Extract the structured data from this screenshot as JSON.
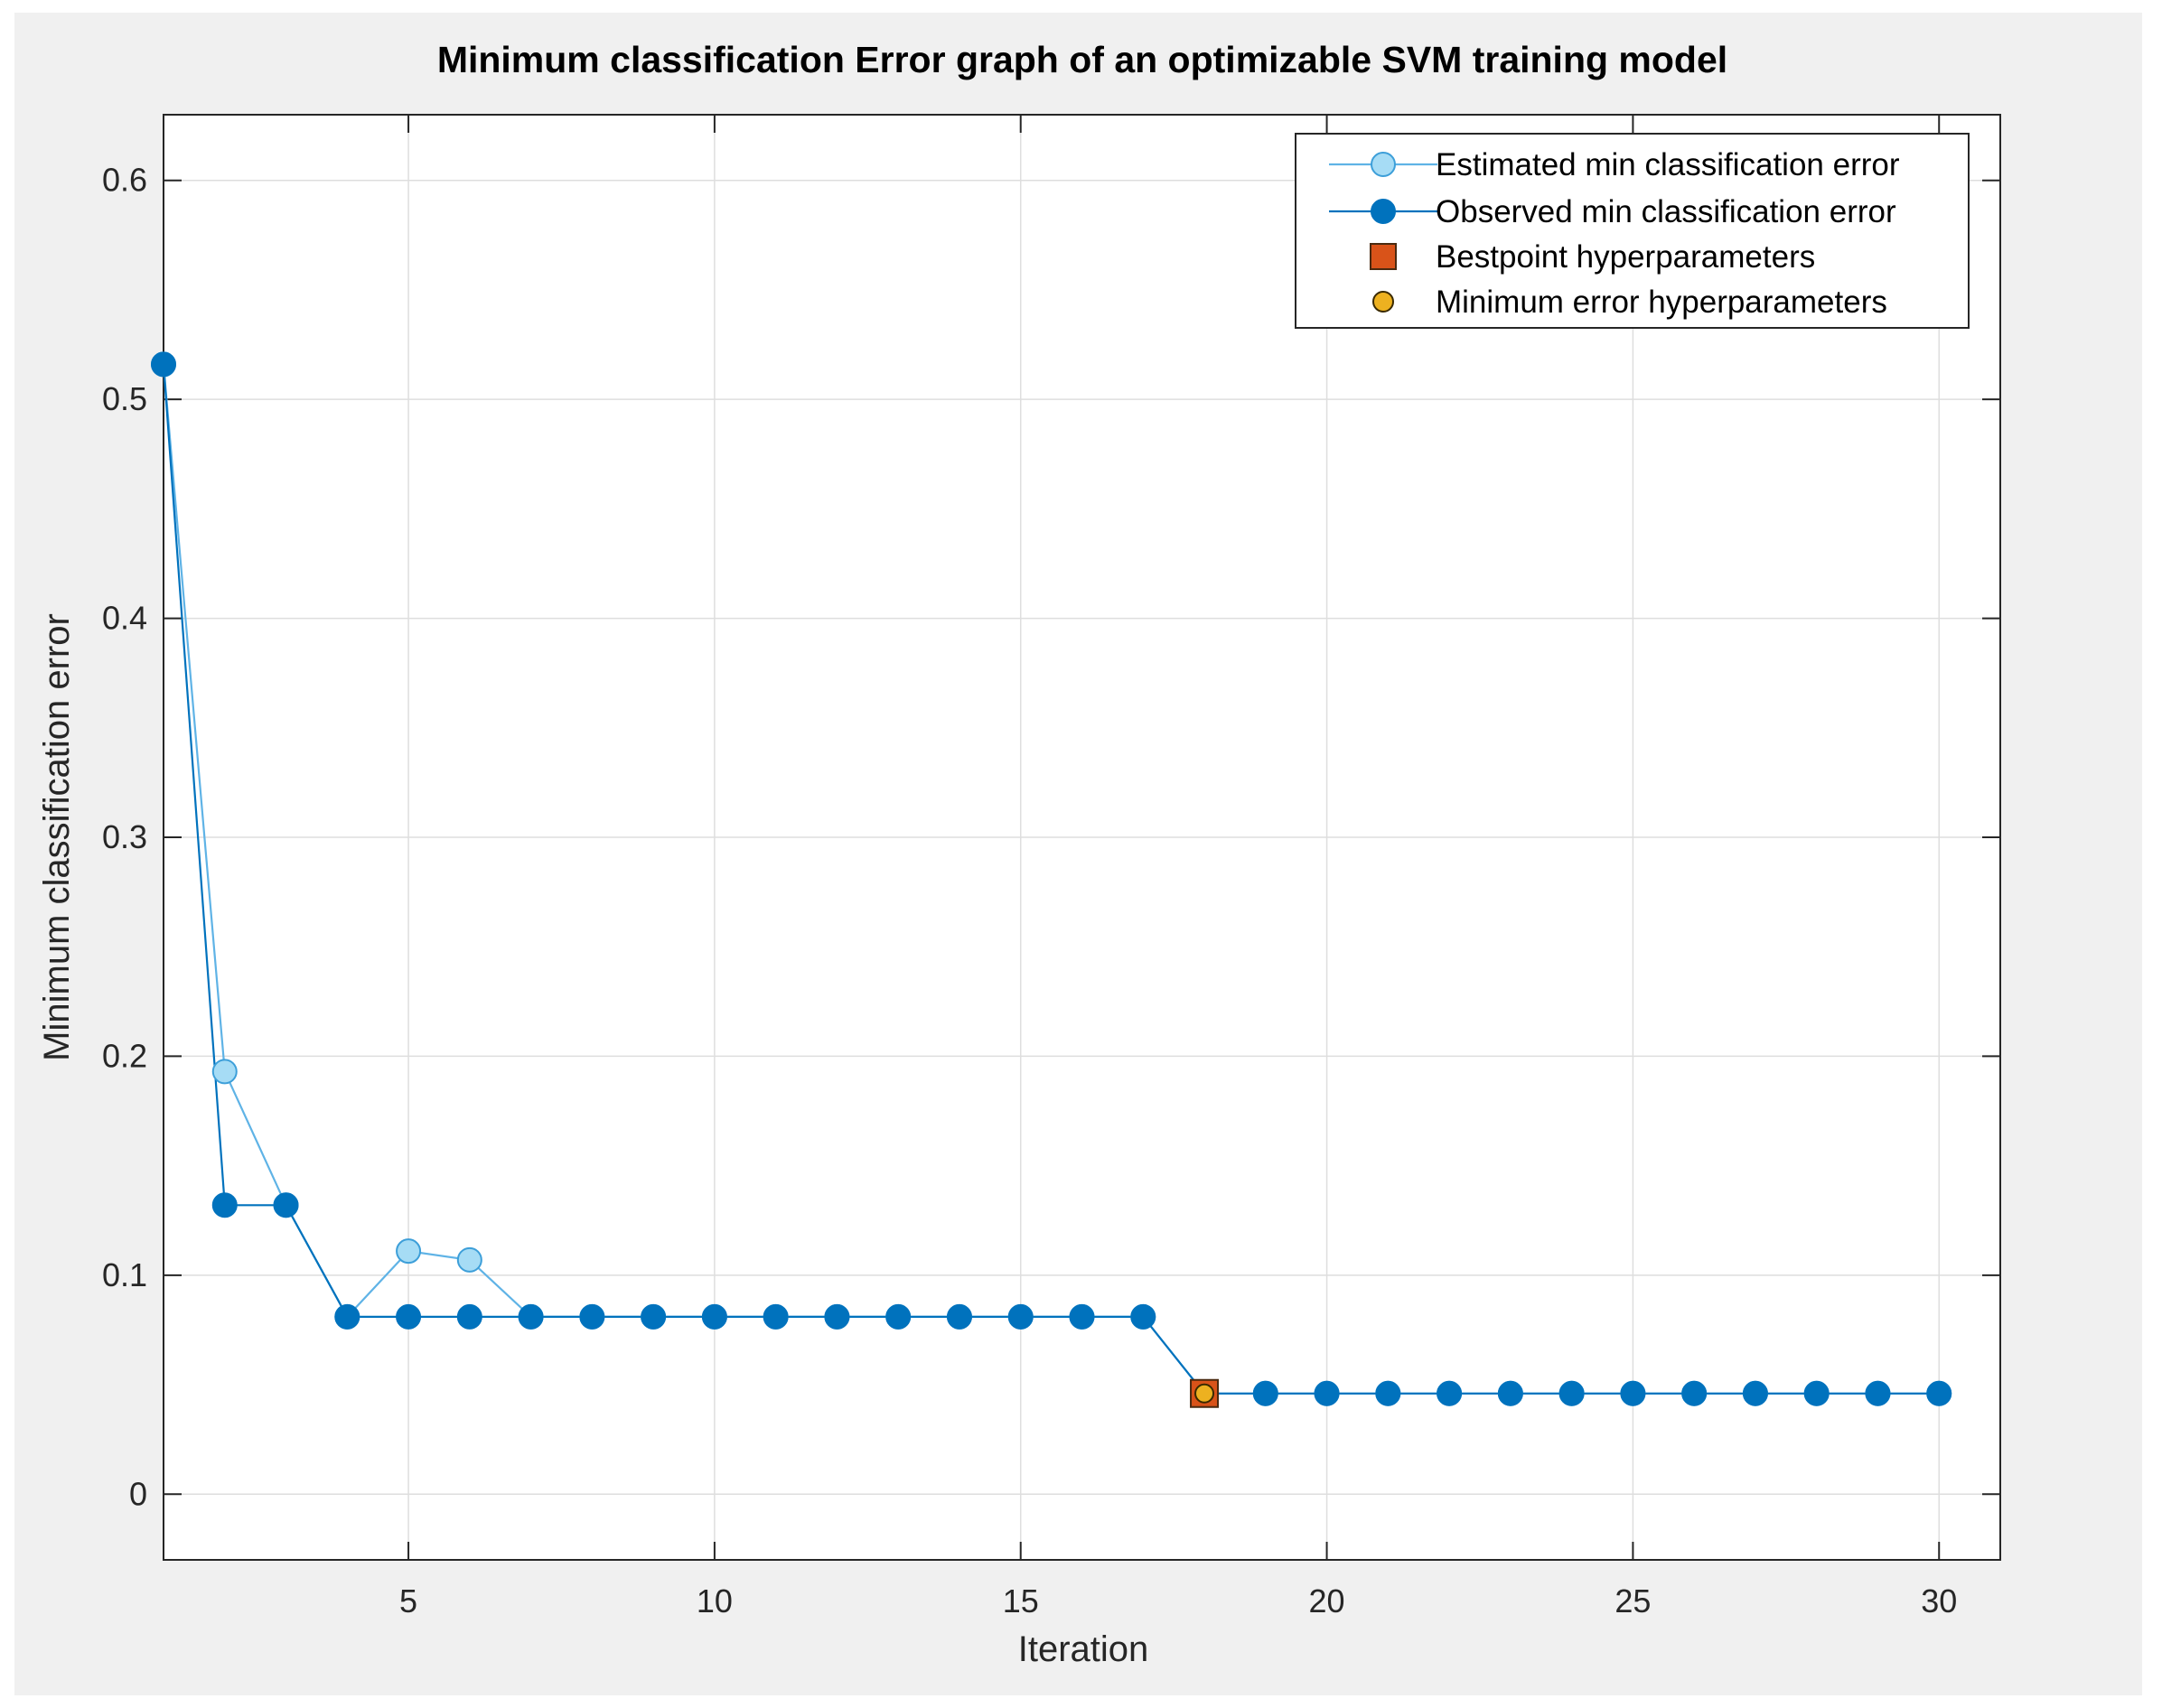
{
  "chart_data": {
    "type": "line",
    "title": "Minimum classification Error graph of an optimizable SVM training model",
    "xlabel": "Iteration",
    "ylabel": "Minimum classification error",
    "xlim": [
      1,
      31
    ],
    "ylim": [
      -0.03,
      0.63
    ],
    "xticks": [
      5,
      10,
      15,
      20,
      25,
      30
    ],
    "yticks": [
      0,
      0.1,
      0.2,
      0.3,
      0.4,
      0.5,
      0.6
    ],
    "grid": true,
    "legend_position": "top-right",
    "x": [
      1,
      2,
      3,
      4,
      5,
      6,
      7,
      8,
      9,
      10,
      11,
      12,
      13,
      14,
      15,
      16,
      17,
      18,
      19,
      20,
      21,
      22,
      23,
      24,
      25,
      26,
      27,
      28,
      29,
      30
    ],
    "series": [
      {
        "name": "Estimated min classification error",
        "color": "#a6dcf5",
        "edge_color": "#3d9fd9",
        "marker": "circle-open",
        "values": [
          0.516,
          0.193,
          0.132,
          0.081,
          0.111,
          0.107,
          0.081,
          0.081,
          0.081,
          0.081,
          0.081,
          0.081,
          0.081,
          0.081,
          0.081,
          0.081,
          0.081,
          0.046,
          0.046,
          0.046,
          0.046,
          0.046,
          0.046,
          0.046,
          0.046,
          0.046,
          0.046,
          0.046,
          0.046,
          0.046
        ]
      },
      {
        "name": "Observed min classification error",
        "color": "#0072bd",
        "edge_color": "#0072bd",
        "marker": "circle-filled",
        "values": [
          0.516,
          0.132,
          0.132,
          0.081,
          0.081,
          0.081,
          0.081,
          0.081,
          0.081,
          0.081,
          0.081,
          0.081,
          0.081,
          0.081,
          0.081,
          0.081,
          0.081,
          0.046,
          0.046,
          0.046,
          0.046,
          0.046,
          0.046,
          0.046,
          0.046,
          0.046,
          0.046,
          0.046,
          0.046,
          0.046
        ]
      }
    ],
    "points": [
      {
        "name": "Bestpoint hyperparameters",
        "marker": "square",
        "color": "#d95319",
        "x": 18,
        "y": 0.046
      },
      {
        "name": "Minimum error hyperparameters",
        "marker": "circle",
        "color": "#edb120",
        "x": 18,
        "y": 0.046
      }
    ]
  }
}
